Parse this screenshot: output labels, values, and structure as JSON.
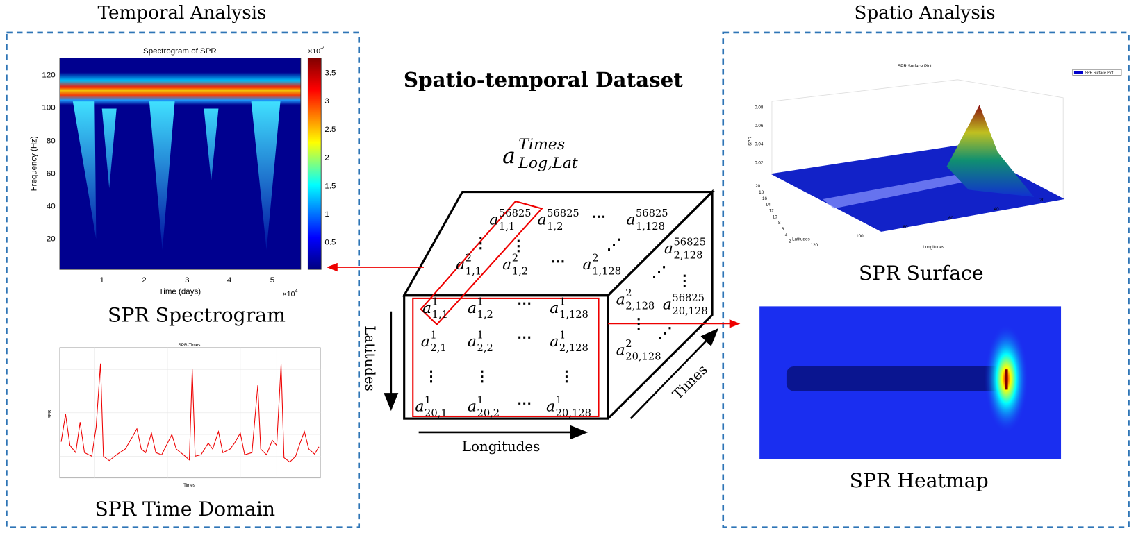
{
  "titles": {
    "temporal": "Temporal Analysis",
    "spatio": "Spatio Analysis",
    "dataset": "Spatio-temporal Dataset"
  },
  "notation": {
    "base": "a",
    "sup": "Times",
    "sub": "Log,Lat"
  },
  "spectrogram": {
    "title": "Spectrogram of SPR",
    "xlabel": "Time (days)",
    "ylabel": "Frequency (Hz)",
    "xscale": "×10",
    "xscale_exp": "4",
    "yticks": [
      "120",
      "100",
      "80",
      "60",
      "40",
      "20"
    ],
    "xticks": [
      "1",
      "2",
      "3",
      "4",
      "5"
    ],
    "cbar_ticks": [
      "3.5",
      "3",
      "2.5",
      "2",
      "1.5",
      "1",
      "0.5"
    ],
    "cbar_scale": "×10",
    "cbar_exp": "-4",
    "caption": "SPR Spectrogram"
  },
  "time_domain": {
    "title": "SPR-Times",
    "xlabel": "Times",
    "ylabel": "SPR",
    "caption": "SPR Time Domain"
  },
  "surface": {
    "title": "SPR Surface Plot",
    "legend": "SPR Surface Plot",
    "zlabel": "SPR",
    "xlabel": "Longitudes",
    "ylabel": "Latitudes",
    "zticks": [
      "0.08",
      "0.06",
      "0.04",
      "0.02"
    ],
    "yticks": [
      "20",
      "18",
      "16",
      "14",
      "12",
      "10",
      "8",
      "6",
      "4",
      "2"
    ],
    "xticks": [
      "120",
      "100",
      "80",
      "60",
      "40",
      "20"
    ],
    "caption": "SPR Surface"
  },
  "heatmap": {
    "caption": "SPR Heatmap"
  },
  "cube": {
    "axes": {
      "latitudes": "Latitudes",
      "longitudes": "Longitudes",
      "times": "Times"
    },
    "entries": [
      {
        "sup": "1",
        "sub": "1,1"
      },
      {
        "sup": "1",
        "sub": "1,2"
      },
      {
        "text": "⋯"
      },
      {
        "sup": "1",
        "sub": "1,128"
      },
      {
        "sup": "1",
        "sub": "2,1"
      },
      {
        "sup": "1",
        "sub": "2,2"
      },
      {
        "text": "⋯"
      },
      {
        "sup": "1",
        "sub": "2,128"
      },
      {
        "text": "⋮"
      },
      {
        "text": "⋮"
      },
      {
        "text": "⋮"
      },
      {
        "sup": "1",
        "sub": "20,1"
      },
      {
        "sup": "1",
        "sub": "20,2"
      },
      {
        "text": "⋯"
      },
      {
        "sup": "1",
        "sub": "20,128"
      },
      {
        "sup": "56825",
        "sub": "1,1"
      },
      {
        "sup": "56825",
        "sub": "1,2"
      },
      {
        "text": "⋯"
      },
      {
        "sup": "56825",
        "sub": "1,128"
      },
      {
        "text": "⋮"
      },
      {
        "text": "⋮"
      },
      {
        "text": "⋰"
      },
      {
        "sup": "2",
        "sub": "1,1"
      },
      {
        "sup": "2",
        "sub": "1,2"
      },
      {
        "text": "⋯"
      },
      {
        "sup": "2",
        "sub": "1,128"
      },
      {
        "sup": "56825",
        "sub": "2,128"
      },
      {
        "text": "⋰"
      },
      {
        "text": "⋮"
      },
      {
        "sup": "2",
        "sub": "2,128"
      },
      {
        "sup": "56825",
        "sub": "20,128"
      },
      {
        "text": "⋮"
      },
      {
        "text": "⋰"
      },
      {
        "sup": "2",
        "sub": "20,128"
      }
    ]
  }
}
